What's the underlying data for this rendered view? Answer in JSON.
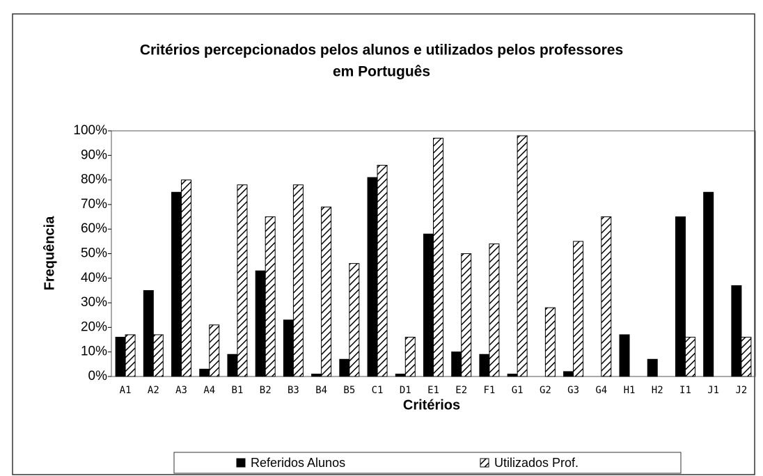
{
  "chart_data": {
    "type": "bar",
    "title": [
      "Critérios percepcionados pelos alunos  e utilizados pelos professores",
      "em Português"
    ],
    "x_label": "Critérios",
    "y_label": "Frequência",
    "categories": [
      "A1",
      "A2",
      "A3",
      "A4",
      "B1",
      "B2",
      "B3",
      "B4",
      "B5",
      "C1",
      "D1",
      "E1",
      "E2",
      "F1",
      "G1",
      "G2",
      "G3",
      "G4",
      "H1",
      "H2",
      "I1",
      "J1",
      "J2"
    ],
    "series": [
      {
        "name": "Referidos Alunos",
        "color": "#000000",
        "hatch": false,
        "values": [
          16,
          35,
          75,
          3,
          9,
          43,
          23,
          1,
          7,
          81,
          1,
          58,
          10,
          9,
          1,
          0,
          2,
          0,
          17,
          7,
          65,
          75,
          37
        ]
      },
      {
        "name": "Utilizados Prof.",
        "color": "#000000",
        "hatch": true,
        "values": [
          17,
          17,
          80,
          21,
          78,
          65,
          78,
          69,
          46,
          86,
          16,
          97,
          50,
          54,
          98,
          28,
          55,
          65,
          0,
          0,
          16,
          0,
          16
        ]
      }
    ],
    "ylim": [
      0,
      100
    ],
    "yticks": [
      {
        "value": 0,
        "label": "0%"
      },
      {
        "value": 10,
        "label": "10%"
      },
      {
        "value": 20,
        "label": "20%"
      },
      {
        "value": 30,
        "label": "30%"
      },
      {
        "value": 40,
        "label": "40%"
      },
      {
        "value": 50,
        "label": "50%"
      },
      {
        "value": 60,
        "label": "60%"
      },
      {
        "value": 70,
        "label": "70%"
      },
      {
        "value": 80,
        "label": "80%"
      },
      {
        "value": 90,
        "label": "90%"
      },
      {
        "value": 100,
        "label": "100%"
      }
    ],
    "grid": false,
    "legend": "bottom"
  }
}
